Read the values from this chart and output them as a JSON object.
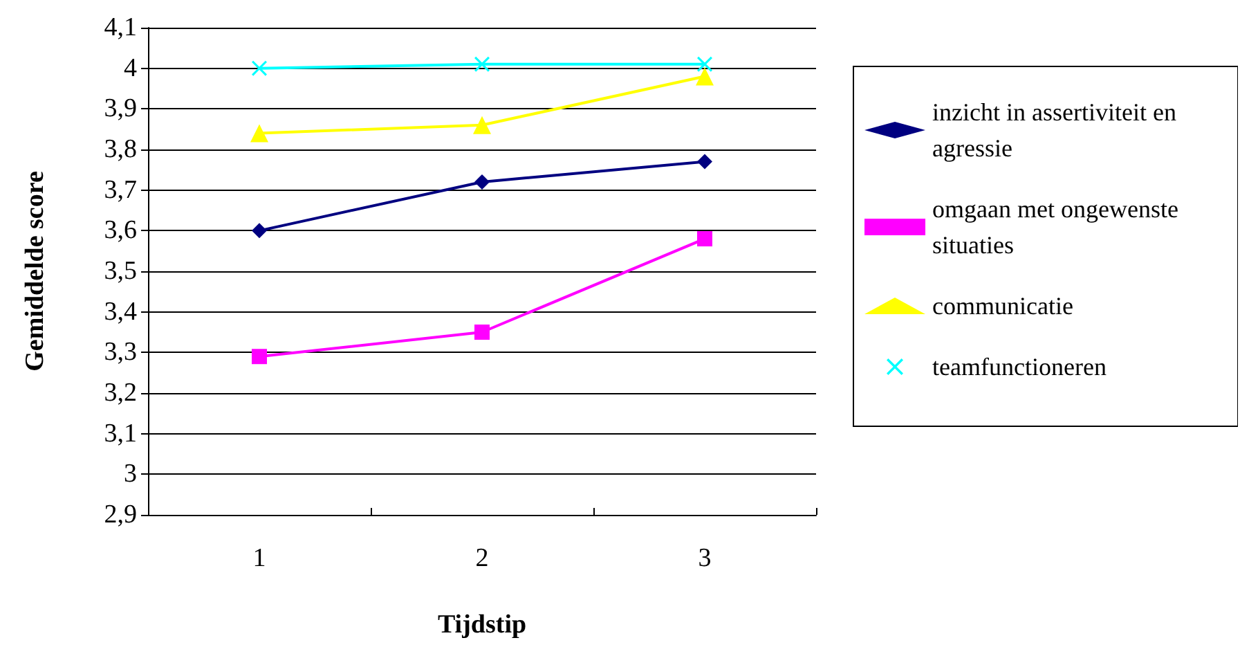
{
  "chart_data": {
    "type": "line",
    "xlabel": "Tijdstip",
    "ylabel": "Gemiddelde score",
    "categories": [
      "1",
      "2",
      "3"
    ],
    "ylim": [
      2.9,
      4.1
    ],
    "yticks": [
      {
        "value": 2.9,
        "label": "2,9"
      },
      {
        "value": 3,
        "label": "3"
      },
      {
        "value": 3.1,
        "label": "3,1"
      },
      {
        "value": 3.2,
        "label": "3,2"
      },
      {
        "value": 3.3,
        "label": "3,3"
      },
      {
        "value": 3.4,
        "label": "3,4"
      },
      {
        "value": 3.5,
        "label": "3,5"
      },
      {
        "value": 3.6,
        "label": "3,6"
      },
      {
        "value": 3.7,
        "label": "3,7"
      },
      {
        "value": 3.8,
        "label": "3,8"
      },
      {
        "value": 3.9,
        "label": "3,9"
      },
      {
        "value": 4,
        "label": "4"
      },
      {
        "value": 4.1,
        "label": "4,1"
      }
    ],
    "grid": "y",
    "legend": "right",
    "line_style": "solid",
    "series": [
      {
        "name": "inzicht in assertiviteit en agressie",
        "color": "#000080",
        "marker": "diamond",
        "values": [
          3.6,
          3.72,
          3.77
        ]
      },
      {
        "name": "omgaan met ongewenste situaties",
        "color": "#ff00ff",
        "marker": "square",
        "values": [
          3.29,
          3.35,
          3.58
        ]
      },
      {
        "name": "communicatie",
        "color": "#ffff00",
        "marker": "triangle",
        "values": [
          3.84,
          3.86,
          3.98
        ]
      },
      {
        "name": "teamfunctioneren",
        "color": "#00ffff",
        "marker": "cross",
        "values": [
          4.0,
          4.01,
          4.01
        ]
      }
    ]
  }
}
